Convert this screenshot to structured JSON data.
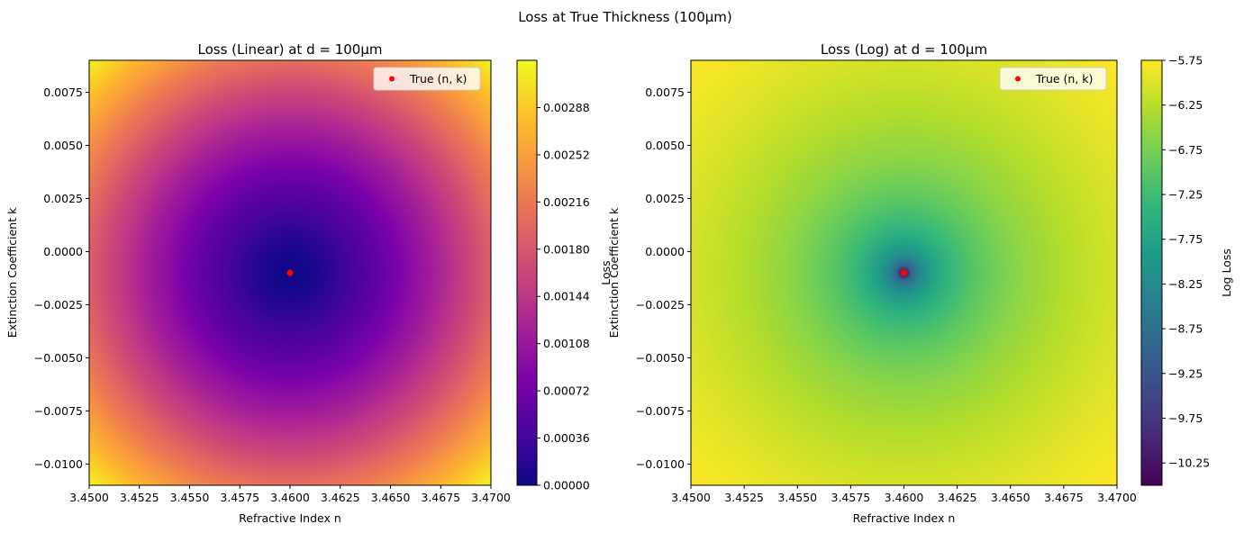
{
  "suptitle": "Loss at True Thickness (100µm)",
  "chart_data": [
    {
      "type": "heatmap",
      "title": "Loss (Linear) at d = 100µm",
      "xlabel": "Refractive Index n",
      "ylabel": "Extinction Coefficient k",
      "xlim": [
        3.45,
        3.47
      ],
      "ylim": [
        -0.011,
        0.009
      ],
      "xticks": [
        3.45,
        3.4525,
        3.455,
        3.4575,
        3.46,
        3.4625,
        3.465,
        3.4675,
        3.47
      ],
      "xtick_labels": [
        "3.4500",
        "3.4525",
        "3.4550",
        "3.4575",
        "3.4600",
        "3.4625",
        "3.4650",
        "3.4675",
        "3.4700"
      ],
      "yticks": [
        0.0075,
        0.005,
        0.0025,
        0.0,
        -0.0025,
        -0.005,
        -0.0075,
        -0.01
      ],
      "ytick_labels": [
        "0.0075",
        "0.0050",
        "0.0025",
        "0.0000",
        "−0.0025",
        "−0.0050",
        "−0.0075",
        "−0.0100"
      ],
      "colormap": "plasma",
      "colorbar_label": "Loss",
      "colorbar_range": [
        0.0,
        0.00324
      ],
      "colorbar_ticks": [
        0.0,
        0.00036,
        0.00072,
        0.00108,
        0.00144,
        0.0018,
        0.00216,
        0.00252,
        0.00288
      ],
      "colorbar_tick_labels": [
        "0.00000",
        "0.00036",
        "0.00072",
        "0.00108",
        "0.00144",
        "0.00180",
        "0.00216",
        "0.00252",
        "0.00288"
      ],
      "minimum": {
        "n": 3.46,
        "k": -0.001
      },
      "corner_value": 0.0032,
      "marker": {
        "label": "True (n, k)",
        "n": 3.46,
        "k": -0.001,
        "color": "#ff0000"
      },
      "legend_position": "top-right"
    },
    {
      "type": "heatmap",
      "title": "Loss (Log) at d = 100µm",
      "xlabel": "Refractive Index n",
      "ylabel": "Extinction Coefficient k",
      "xlim": [
        3.45,
        3.47
      ],
      "ylim": [
        -0.011,
        0.009
      ],
      "xticks": [
        3.45,
        3.4525,
        3.455,
        3.4575,
        3.46,
        3.4625,
        3.465,
        3.4675,
        3.47
      ],
      "xtick_labels": [
        "3.4500",
        "3.4525",
        "3.4550",
        "3.4575",
        "3.4600",
        "3.4625",
        "3.4650",
        "3.4675",
        "3.4700"
      ],
      "yticks": [
        0.0075,
        0.005,
        0.0025,
        0.0,
        -0.0025,
        -0.005,
        -0.0075,
        -0.01
      ],
      "ytick_labels": [
        "0.0075",
        "0.0050",
        "0.0025",
        "0.0000",
        "−0.0025",
        "−0.0050",
        "−0.0075",
        "−0.0100"
      ],
      "colormap": "viridis",
      "colorbar_label": "Log Loss",
      "colorbar_range": [
        -10.5,
        -5.75
      ],
      "colorbar_ticks": [
        -5.75,
        -6.25,
        -6.75,
        -7.25,
        -7.75,
        -8.25,
        -8.75,
        -9.25,
        -9.75,
        -10.25
      ],
      "colorbar_tick_labels": [
        "−5.75",
        "−6.25",
        "−6.75",
        "−7.25",
        "−7.75",
        "−8.25",
        "−8.75",
        "−9.25",
        "−9.75",
        "−10.25"
      ],
      "minimum": {
        "n": 3.46,
        "k": -0.001
      },
      "corner_value": -5.75,
      "marker": {
        "label": "True (n, k)",
        "n": 3.46,
        "k": -0.001,
        "color": "#ff0000"
      },
      "legend_position": "top-right"
    }
  ]
}
